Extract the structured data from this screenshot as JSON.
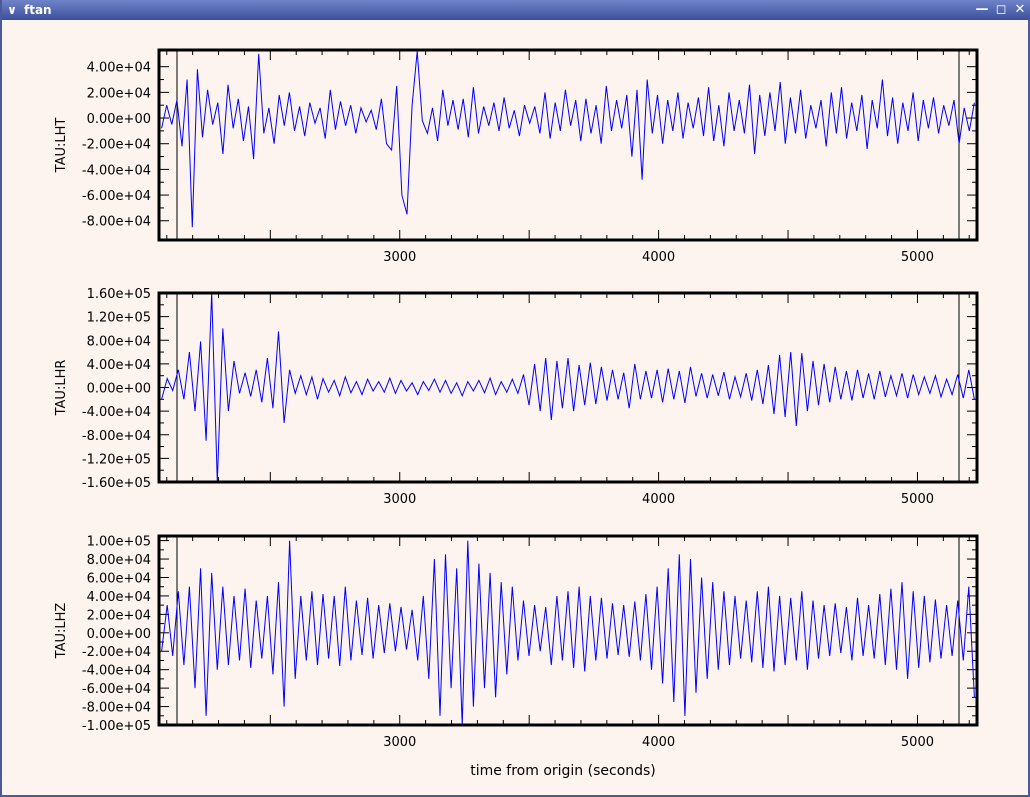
{
  "window": {
    "title": "ftan",
    "icons": {
      "menu": "chevron-down-icon",
      "minimize": "minimize-icon",
      "maximize": "maximize-icon",
      "close": "close-icon"
    }
  },
  "chart_data": [
    {
      "type": "line",
      "ylabel": "TAU:LHT",
      "xlabel": "",
      "xlim": [
        2070,
        5230
      ],
      "ylim": [
        -95000,
        53000
      ],
      "xticks": [
        3000,
        4000,
        5000
      ],
      "xtick_labels": [
        "3000",
        "4000",
        "5000"
      ],
      "yticks": [
        40000,
        20000,
        0,
        -20000,
        -40000,
        -60000,
        -80000
      ],
      "ytick_labels": [
        "4.00e+04",
        "2.00e+04",
        "0.00e+00",
        "-2.00e+04",
        "-4.00e+04",
        "-6.00e+04",
        "-8.00e+04"
      ],
      "color": "#0000ff",
      "series": [
        {
          "x_start": 2080,
          "x_end": 5220,
          "values": [
            -8000,
            10000,
            -5000,
            14000,
            -22000,
            30000,
            -85000,
            38000,
            -15000,
            22000,
            -5000,
            12000,
            -28000,
            26000,
            -8000,
            15000,
            -18000,
            9000,
            -32000,
            50000,
            -12000,
            8000,
            -20000,
            18000,
            -6000,
            20000,
            -10000,
            9000,
            -14000,
            12000,
            -4000,
            8000,
            -16000,
            22000,
            -9000,
            13000,
            -6000,
            10000,
            -12000,
            8000,
            -3000,
            6000,
            -9000,
            15000,
            -20000,
            -25000,
            25000,
            -60000,
            -75000,
            10000,
            52000,
            -2000,
            -12000,
            8000,
            -18000,
            22000,
            -6000,
            14000,
            -9000,
            15000,
            -15000,
            24000,
            -12000,
            9000,
            -6000,
            12000,
            -10000,
            16000,
            -8000,
            6000,
            -14000,
            10000,
            -4000,
            9000,
            -12000,
            20000,
            -16000,
            12000,
            -10000,
            22000,
            -6000,
            14000,
            -18000,
            15000,
            -12000,
            10000,
            -20000,
            25000,
            -10000,
            14000,
            -8000,
            18000,
            -30000,
            22000,
            -48000,
            30000,
            -12000,
            18000,
            -20000,
            14000,
            -10000,
            20000,
            -16000,
            12000,
            -8000,
            16000,
            -14000,
            24000,
            -18000,
            10000,
            -22000,
            20000,
            -10000,
            14000,
            -12000,
            26000,
            -28000,
            18000,
            -14000,
            20000,
            -10000,
            28000,
            -20000,
            16000,
            -12000,
            22000,
            -16000,
            10000,
            -8000,
            14000,
            -22000,
            20000,
            -12000,
            24000,
            -16000,
            12000,
            -10000,
            18000,
            -24000,
            14000,
            -8000,
            30000,
            -14000,
            16000,
            -20000,
            12000,
            -10000,
            20000,
            -18000,
            14000,
            -8000,
            16000,
            -12000,
            10000,
            -6000,
            14000,
            -20000,
            8000,
            -10000,
            12000
          ]
        }
      ]
    },
    {
      "type": "line",
      "ylabel": "TAU:LHR",
      "xlabel": "",
      "xlim": [
        2070,
        5230
      ],
      "ylim": [
        -160000,
        160000
      ],
      "xticks": [
        3000,
        4000,
        5000
      ],
      "xtick_labels": [
        "3000",
        "4000",
        "5000"
      ],
      "yticks": [
        160000,
        120000,
        80000,
        40000,
        0,
        -40000,
        -80000,
        -120000,
        -160000
      ],
      "ytick_labels": [
        "1.60e+05",
        "1.20e+05",
        "8.00e+04",
        "4.00e+04",
        "0.00e+00",
        "-4.00e+04",
        "-8.00e+04",
        "-1.20e+05",
        "-1.60e+05"
      ],
      "color": "#0000ff",
      "series": [
        {
          "x_start": 2080,
          "x_end": 5220,
          "values": [
            -20000,
            15000,
            -5000,
            30000,
            -20000,
            60000,
            -40000,
            78000,
            -90000,
            160000,
            -160000,
            100000,
            -40000,
            45000,
            -10000,
            25000,
            -15000,
            30000,
            -25000,
            50000,
            -35000,
            95000,
            -60000,
            30000,
            -10000,
            20000,
            -12000,
            18000,
            -20000,
            15000,
            -8000,
            12000,
            -14000,
            18000,
            -9000,
            10000,
            -12000,
            14000,
            -6000,
            10000,
            -8000,
            16000,
            -10000,
            12000,
            -6000,
            8000,
            -12000,
            10000,
            -5000,
            14000,
            -8000,
            12000,
            -10000,
            8000,
            -14000,
            10000,
            -6000,
            12000,
            -9000,
            16000,
            -12000,
            10000,
            -8000,
            14000,
            -10000,
            22000,
            -30000,
            40000,
            -40000,
            50000,
            -55000,
            45000,
            -35000,
            50000,
            -40000,
            38000,
            -30000,
            42000,
            -28000,
            35000,
            -22000,
            30000,
            -20000,
            25000,
            -35000,
            40000,
            -20000,
            28000,
            -18000,
            30000,
            -25000,
            32000,
            -20000,
            28000,
            -26000,
            35000,
            -15000,
            24000,
            -18000,
            22000,
            -14000,
            26000,
            -20000,
            18000,
            -16000,
            24000,
            -22000,
            30000,
            -28000,
            38000,
            -45000,
            55000,
            -50000,
            60000,
            -65000,
            58000,
            -40000,
            45000,
            -30000,
            40000,
            -25000,
            35000,
            -20000,
            28000,
            -22000,
            30000,
            -18000,
            24000,
            -20000,
            28000,
            -16000,
            20000,
            -14000,
            24000,
            -18000,
            22000,
            -12000,
            18000,
            -10000,
            20000,
            -16000,
            14000,
            -12000,
            22000,
            -18000,
            30000,
            -20000
          ]
        }
      ]
    },
    {
      "type": "line",
      "ylabel": "TAU:LHZ",
      "xlabel": "time from origin (seconds)",
      "xlim": [
        2070,
        5230
      ],
      "ylim": [
        -100000,
        105000
      ],
      "xticks": [
        3000,
        4000,
        5000
      ],
      "xtick_labels": [
        "3000",
        "4000",
        "5000"
      ],
      "yticks": [
        100000,
        80000,
        60000,
        40000,
        20000,
        0,
        -20000,
        -40000,
        -60000,
        -80000,
        -100000
      ],
      "ytick_labels": [
        "1.00e+05",
        "8.00e+04",
        "6.00e+04",
        "4.00e+04",
        "2.00e+04",
        "0.00e+00",
        "-2.00e+04",
        "-4.00e+04",
        "-6.00e+04",
        "-8.00e+04",
        "-1.00e+05"
      ],
      "color": "#0000ff",
      "series": [
        {
          "x_start": 2080,
          "x_end": 5220,
          "values": [
            -20000,
            30000,
            -25000,
            45000,
            -35000,
            50000,
            -60000,
            70000,
            -90000,
            65000,
            -40000,
            50000,
            -35000,
            40000,
            -30000,
            48000,
            -38000,
            35000,
            -28000,
            40000,
            -45000,
            55000,
            -80000,
            100000,
            -50000,
            40000,
            -30000,
            45000,
            -35000,
            42000,
            -28000,
            40000,
            -36000,
            50000,
            -30000,
            35000,
            -24000,
            38000,
            -28000,
            30000,
            -22000,
            32000,
            -20000,
            28000,
            -18000,
            25000,
            -30000,
            40000,
            -50000,
            80000,
            -90000,
            85000,
            -60000,
            70000,
            -100000,
            100000,
            -80000,
            75000,
            -60000,
            65000,
            -70000,
            55000,
            -45000,
            50000,
            -30000,
            35000,
            -25000,
            30000,
            -20000,
            28000,
            -35000,
            40000,
            -30000,
            45000,
            -38000,
            50000,
            -42000,
            40000,
            -30000,
            38000,
            -28000,
            32000,
            -24000,
            30000,
            -26000,
            34000,
            -30000,
            42000,
            -40000,
            50000,
            -55000,
            70000,
            -75000,
            85000,
            -90000,
            80000,
            -65000,
            60000,
            -50000,
            55000,
            -40000,
            45000,
            -35000,
            40000,
            -28000,
            35000,
            -32000,
            45000,
            -38000,
            50000,
            -42000,
            40000,
            -35000,
            38000,
            -30000,
            45000,
            -40000,
            35000,
            -28000,
            30000,
            -25000,
            32000,
            -22000,
            28000,
            -30000,
            38000,
            -25000,
            30000,
            -28000,
            42000,
            -35000,
            48000,
            -40000,
            55000,
            -50000,
            45000,
            -38000,
            40000,
            -32000,
            36000,
            -28000,
            30000,
            -25000,
            35000,
            -30000,
            50000,
            -70000
          ]
        }
      ]
    }
  ]
}
